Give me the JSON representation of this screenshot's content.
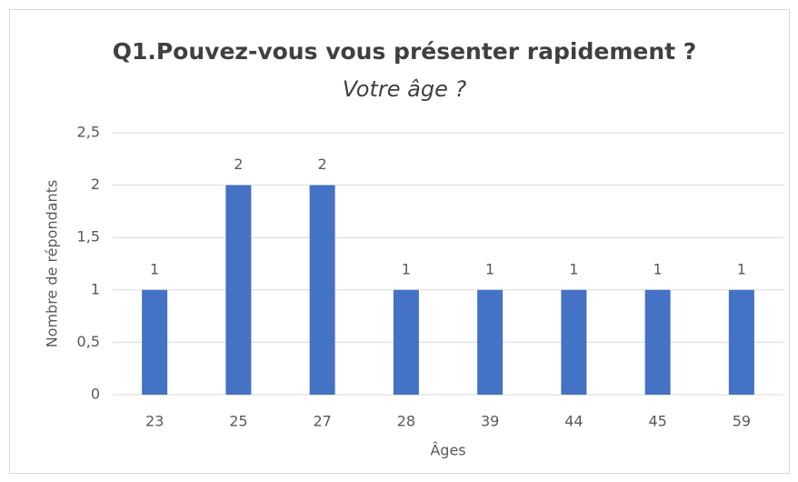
{
  "chart_data": {
    "type": "bar",
    "title": "Q1.Pouvez-vous vous présenter rapidement ?",
    "subtitle": "Votre âge ?",
    "x_label": "Âges",
    "y_label": "Nombre de répondants",
    "categories": [
      "23",
      "25",
      "27",
      "28",
      "39",
      "44",
      "45",
      "59"
    ],
    "values": [
      1,
      2,
      2,
      1,
      1,
      1,
      1,
      1
    ],
    "color": "#4472c4",
    "ylim": [
      0,
      2.5
    ],
    "yticks": [
      0,
      {
        "value": 0.5,
        "label": "0,5"
      },
      1,
      {
        "value": 1.5,
        "label": "1,5"
      },
      2,
      {
        "value": 2.5,
        "label": "2,5"
      }
    ],
    "grid": true
  }
}
